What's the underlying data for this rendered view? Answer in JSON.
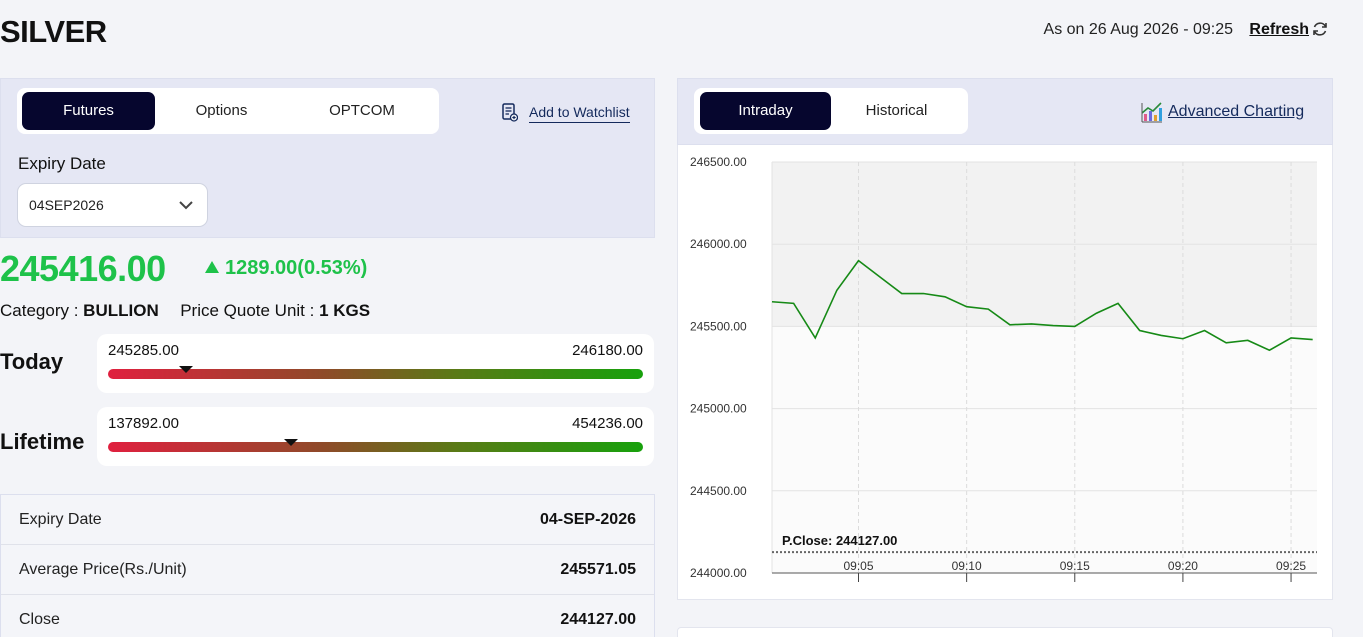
{
  "header": {
    "title": "SILVER",
    "as_on": "As on 26 Aug 2026 - 09:25",
    "refresh_label": "Refresh",
    "refresh_icon": "refresh-icon"
  },
  "left_panel": {
    "tabs": [
      {
        "label": "Futures",
        "active": true
      },
      {
        "label": "Options",
        "active": false
      },
      {
        "label": "OPTCOM",
        "active": false
      }
    ],
    "watchlist_label": "Add to Watchlist",
    "watchlist_icon": "watchlist-icon",
    "expiry_label": "Expiry Date",
    "expiry_value": "04SEP2026"
  },
  "quote": {
    "price": "245416.00",
    "change": "1289.00(0.53%)",
    "category_label": "Category :",
    "category_value": "BULLION",
    "unit_label": "Price Quote Unit :",
    "unit_value": "1 KGS",
    "up_color": "#1ec24a"
  },
  "ranges": {
    "today": {
      "label": "Today",
      "low": "245285.00",
      "high": "246180.00",
      "position": 0.146
    },
    "lifetime": {
      "label": "Lifetime",
      "low": "137892.00",
      "high": "454236.00",
      "position": 0.342
    }
  },
  "details": [
    {
      "label": "Expiry Date",
      "value": "04-SEP-2026"
    },
    {
      "label": "Average Price(Rs./Unit)",
      "value": "245571.05"
    },
    {
      "label": "Close",
      "value": "244127.00"
    }
  ],
  "chart_panel": {
    "tabs": [
      {
        "label": "Intraday",
        "active": true
      },
      {
        "label": "Historical",
        "active": false
      }
    ],
    "advanced_label": "Advanced Charting",
    "advanced_icon": "chart-icon"
  },
  "chart_data": {
    "type": "line",
    "title": "",
    "xlabel": "",
    "ylabel": "",
    "ylim": [
      244000,
      246500
    ],
    "yticks": [
      "246500.00",
      "246000.00",
      "245500.00",
      "245000.00",
      "244500.00",
      "244000.00"
    ],
    "xlim": [
      0,
      25.2
    ],
    "xticks": [
      {
        "label": "09:05",
        "x": 4
      },
      {
        "label": "09:10",
        "x": 9
      },
      {
        "label": "09:15",
        "x": 14
      },
      {
        "label": "09:20",
        "x": 19
      },
      {
        "label": "09:25",
        "x": 24
      }
    ],
    "series": [
      {
        "color": "#168a16",
        "x": [
          0,
          1,
          2,
          3,
          4,
          5,
          6,
          7,
          8,
          9,
          10,
          11,
          12,
          13,
          14,
          15,
          16,
          17,
          18,
          19,
          20,
          21,
          22,
          23,
          24,
          25
        ],
        "values": [
          245650,
          245640,
          245430,
          245720,
          245900,
          245800,
          245700,
          245700,
          245680,
          245620,
          245605,
          245510,
          245515,
          245505,
          245500,
          245580,
          245640,
          245475,
          245445,
          245425,
          245475,
          245400,
          245415,
          245355,
          245430,
          245420
        ]
      }
    ],
    "reference_line": {
      "label": "P.Close: 244127.00",
      "value": 244127
    },
    "grid": true,
    "shaded_band": [
      245500,
      246500
    ]
  }
}
